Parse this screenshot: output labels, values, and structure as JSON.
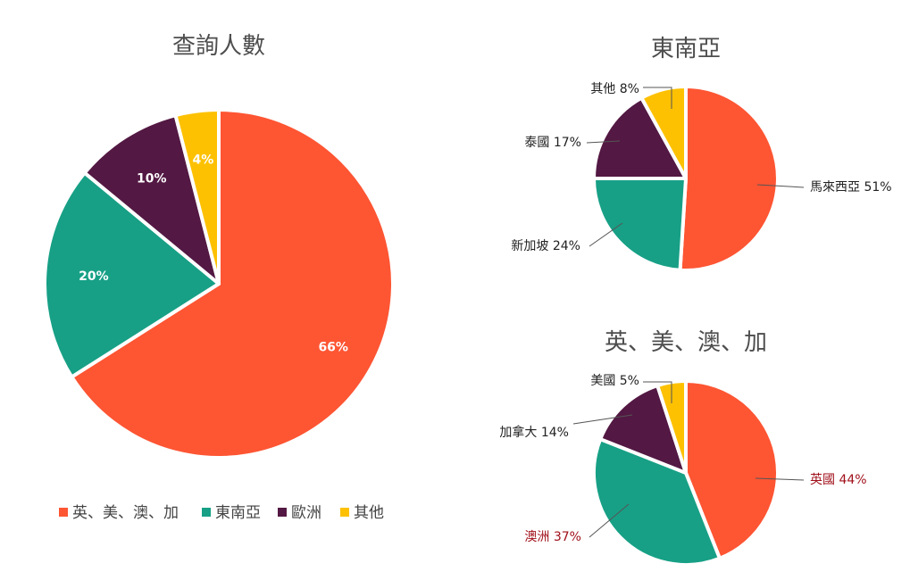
{
  "colors": {
    "anglo": "#fe5533",
    "sea": "#17a086",
    "europe": "#531843",
    "other": "#fdc102",
    "label_dark": "#222222",
    "label_red": "#a0101a"
  },
  "chart_data": [
    {
      "type": "pie",
      "title": "查詢人數",
      "slices": [
        {
          "label": "英、美、澳、加",
          "value": 66,
          "color": "#fe5533",
          "text": "66%"
        },
        {
          "label": "東南亞",
          "value": 20,
          "color": "#17a086",
          "text": "20%"
        },
        {
          "label": "歐洲",
          "value": 10,
          "color": "#531843",
          "text": "10%"
        },
        {
          "label": "其他",
          "value": 4,
          "color": "#fdc102",
          "text": "4%"
        }
      ],
      "legend": {
        "position": "bottom",
        "items": [
          "英、美、澳、加",
          "東南亞",
          "歐洲",
          "其他"
        ]
      }
    },
    {
      "type": "pie",
      "title": "東南亞",
      "slices": [
        {
          "label": "馬來西亞",
          "value": 51,
          "color": "#fe5533",
          "text": "馬來西亞 51%"
        },
        {
          "label": "新加坡",
          "value": 24,
          "color": "#17a086",
          "text": "新加坡 24%"
        },
        {
          "label": "泰國",
          "value": 17,
          "color": "#531843",
          "text": "泰國 17%"
        },
        {
          "label": "其他",
          "value": 8,
          "color": "#fdc102",
          "text": "其他 8%"
        }
      ]
    },
    {
      "type": "pie",
      "title": "英、美、澳、加",
      "slices": [
        {
          "label": "英國",
          "value": 44,
          "color": "#fe5533",
          "text": "英國 44%"
        },
        {
          "label": "澳洲",
          "value": 37,
          "color": "#17a086",
          "text": "澳洲 37%"
        },
        {
          "label": "加拿大",
          "value": 14,
          "color": "#531843",
          "text": "加拿大 14%"
        },
        {
          "label": "美國",
          "value": 5,
          "color": "#fdc102",
          "text": "美國 5%"
        }
      ]
    }
  ]
}
